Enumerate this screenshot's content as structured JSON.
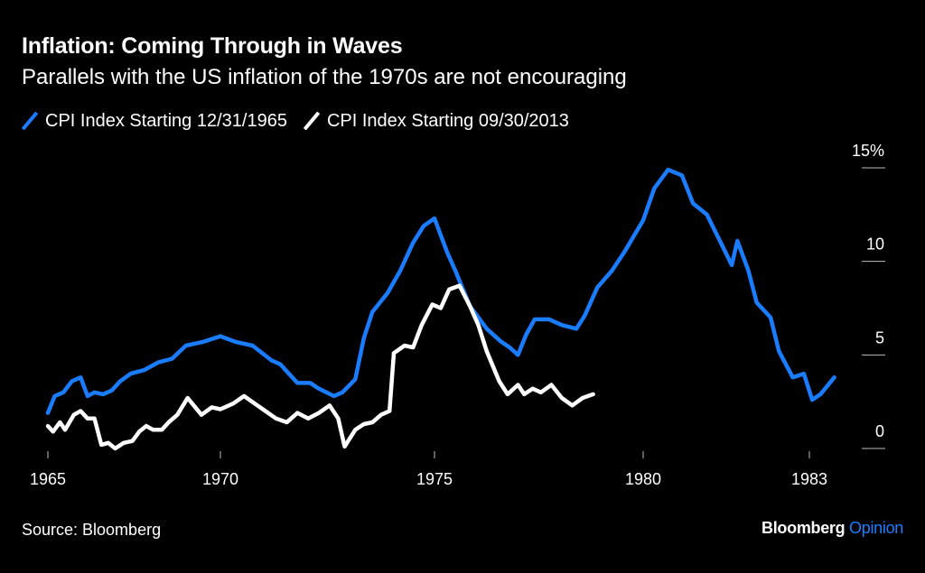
{
  "header": {
    "title": "Inflation: Coming Through in Waves",
    "subtitle": "Parallels with the US inflation of the 1970s are not encouraging"
  },
  "footer": {
    "source": "Source: Bloomberg",
    "brand_main": "Bloomberg",
    "brand_accent": "Opinion"
  },
  "colors": {
    "series_1": "#1a7cff",
    "series_2": "#ffffff",
    "background": "#000000",
    "brand_accent": "#1a7cff"
  },
  "chart_data": {
    "type": "line",
    "title": "Inflation: Coming Through in Waves",
    "subtitle": "Parallels with the US inflation of the 1970s are not encouraging",
    "xlabel": "",
    "ylabel": "",
    "x_ticks": [
      1965,
      1970,
      1975,
      1980,
      1983
    ],
    "y_ticks": [
      0,
      5,
      10,
      15
    ],
    "y_tick_labels": [
      "0",
      "5",
      "10",
      "15%"
    ],
    "ylim": [
      0,
      15
    ],
    "y_axis_side": "right",
    "grid": false,
    "legend_position": "top-left",
    "series": [
      {
        "name": "CPI Index Starting 12/31/1965",
        "color": "#1a7cff",
        "points": [
          [
            1965.0,
            1.9
          ],
          [
            1965.2,
            2.8
          ],
          [
            1965.45,
            3.0
          ],
          [
            1965.7,
            3.6
          ],
          [
            1965.95,
            3.8
          ],
          [
            1966.15,
            2.8
          ],
          [
            1966.35,
            3.0
          ],
          [
            1966.6,
            2.9
          ],
          [
            1966.85,
            3.1
          ],
          [
            1967.1,
            3.6
          ],
          [
            1967.4,
            4.0
          ],
          [
            1967.8,
            4.2
          ],
          [
            1968.2,
            4.6
          ],
          [
            1968.6,
            4.8
          ],
          [
            1969.0,
            5.5
          ],
          [
            1969.5,
            5.7
          ],
          [
            1970.0,
            6.0
          ],
          [
            1970.35,
            5.7
          ],
          [
            1970.75,
            5.5
          ],
          [
            1971.2,
            4.7
          ],
          [
            1971.4,
            4.5
          ],
          [
            1971.6,
            4.0
          ],
          [
            1971.8,
            3.5
          ],
          [
            1972.1,
            3.5
          ],
          [
            1972.3,
            3.2
          ],
          [
            1972.65,
            2.8
          ],
          [
            1972.85,
            3.0
          ],
          [
            1973.15,
            3.7
          ],
          [
            1973.35,
            5.9
          ],
          [
            1973.55,
            7.3
          ],
          [
            1973.9,
            8.3
          ],
          [
            1974.2,
            9.5
          ],
          [
            1974.5,
            11.0
          ],
          [
            1974.75,
            11.9
          ],
          [
            1975.0,
            12.3
          ],
          [
            1975.3,
            10.5
          ],
          [
            1975.5,
            9.5
          ],
          [
            1975.85,
            7.6
          ],
          [
            1976.25,
            6.4
          ],
          [
            1976.6,
            5.7
          ],
          [
            1976.8,
            5.4
          ],
          [
            1977.0,
            5.0
          ],
          [
            1977.2,
            6.1
          ],
          [
            1977.4,
            6.9
          ],
          [
            1977.75,
            6.9
          ],
          [
            1978.05,
            6.6
          ],
          [
            1978.4,
            6.4
          ],
          [
            1978.6,
            7.1
          ],
          [
            1978.9,
            8.6
          ],
          [
            1979.25,
            9.5
          ],
          [
            1979.55,
            10.5
          ],
          [
            1980.0,
            12.2
          ],
          [
            1980.2,
            13.9
          ],
          [
            1980.45,
            14.9
          ],
          [
            1980.7,
            14.6
          ],
          [
            1980.9,
            13.1
          ],
          [
            1981.15,
            12.5
          ],
          [
            1981.4,
            11.0
          ],
          [
            1981.6,
            9.8
          ],
          [
            1981.7,
            11.1
          ],
          [
            1981.9,
            9.5
          ],
          [
            1982.05,
            7.8
          ],
          [
            1982.3,
            7.0
          ],
          [
            1982.45,
            5.2
          ],
          [
            1982.7,
            3.8
          ],
          [
            1982.9,
            4.0
          ],
          [
            1983.05,
            2.6
          ],
          [
            1983.2,
            2.9
          ],
          [
            1983.45,
            3.8
          ]
        ]
      },
      {
        "name": "CPI Index Starting 09/30/2013",
        "color": "#ffffff",
        "points": [
          [
            1965.0,
            1.2
          ],
          [
            1965.15,
            0.9
          ],
          [
            1965.35,
            1.4
          ],
          [
            1965.5,
            1.0
          ],
          [
            1965.75,
            1.8
          ],
          [
            1965.95,
            2.0
          ],
          [
            1966.15,
            1.6
          ],
          [
            1966.35,
            1.6
          ],
          [
            1966.55,
            0.2
          ],
          [
            1966.75,
            0.3
          ],
          [
            1966.95,
            0.0
          ],
          [
            1967.2,
            0.3
          ],
          [
            1967.45,
            0.4
          ],
          [
            1967.65,
            0.9
          ],
          [
            1967.85,
            1.2
          ],
          [
            1968.05,
            1.0
          ],
          [
            1968.3,
            1.0
          ],
          [
            1968.5,
            1.4
          ],
          [
            1968.75,
            1.8
          ],
          [
            1969.05,
            2.7
          ],
          [
            1969.45,
            1.8
          ],
          [
            1969.75,
            2.2
          ],
          [
            1970.0,
            2.1
          ],
          [
            1970.3,
            2.4
          ],
          [
            1970.55,
            2.8
          ],
          [
            1970.8,
            2.4
          ],
          [
            1971.05,
            2.0
          ],
          [
            1971.3,
            1.6
          ],
          [
            1971.55,
            1.4
          ],
          [
            1971.8,
            1.9
          ],
          [
            1972.05,
            1.6
          ],
          [
            1972.3,
            1.9
          ],
          [
            1972.55,
            2.3
          ],
          [
            1972.75,
            1.6
          ],
          [
            1972.9,
            0.1
          ],
          [
            1973.15,
            1.0
          ],
          [
            1973.35,
            1.3
          ],
          [
            1973.55,
            1.4
          ],
          [
            1973.75,
            1.8
          ],
          [
            1973.95,
            2.0
          ],
          [
            1974.05,
            5.1
          ],
          [
            1974.3,
            5.5
          ],
          [
            1974.5,
            5.4
          ],
          [
            1974.7,
            6.6
          ],
          [
            1974.95,
            7.7
          ],
          [
            1975.15,
            7.5
          ],
          [
            1975.35,
            8.5
          ],
          [
            1975.6,
            8.7
          ],
          [
            1975.85,
            7.6
          ],
          [
            1976.05,
            6.6
          ],
          [
            1976.25,
            5.2
          ],
          [
            1976.55,
            3.6
          ],
          [
            1976.75,
            2.9
          ],
          [
            1977.0,
            3.4
          ],
          [
            1977.15,
            2.9
          ],
          [
            1977.35,
            3.2
          ],
          [
            1977.55,
            3.0
          ],
          [
            1977.8,
            3.4
          ],
          [
            1978.05,
            2.7
          ],
          [
            1978.3,
            2.3
          ],
          [
            1978.55,
            2.7
          ],
          [
            1978.8,
            2.9
          ]
        ]
      }
    ]
  }
}
